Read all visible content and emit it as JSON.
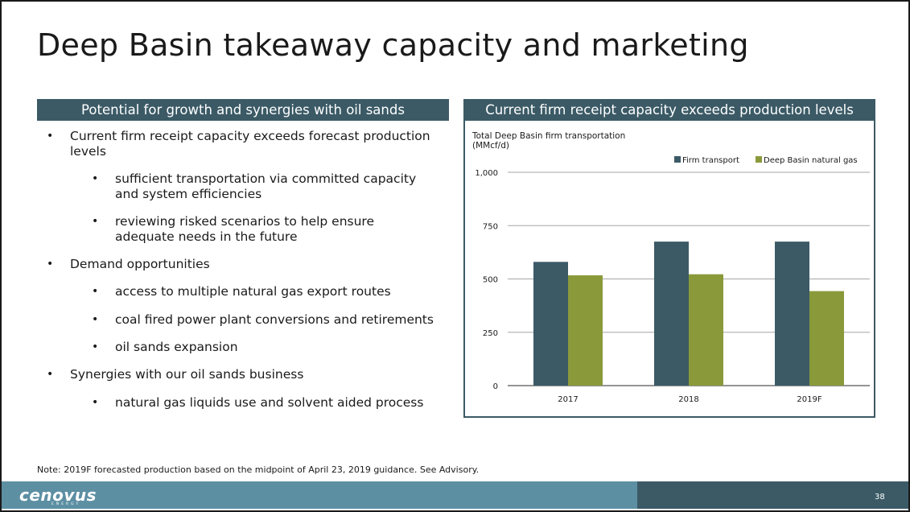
{
  "slide": {
    "title": "Deep Basin takeaway capacity and marketing",
    "left_header": "Potential for growth and synergies with oil sands",
    "right_header": "Current firm receipt capacity exceeds production levels",
    "bullets": [
      {
        "level": 1,
        "lines": [
          "Current firm receipt capacity exceeds forecast production",
          "levels"
        ]
      },
      {
        "level": 2,
        "lines": [
          "sufficient transportation via committed capacity",
          "and system efficiencies"
        ]
      },
      {
        "level": 2,
        "lines": [
          "reviewing risked scenarios to help ensure",
          "adequate needs in the future"
        ]
      },
      {
        "level": 1,
        "lines": [
          "Demand opportunities"
        ]
      },
      {
        "level": 2,
        "lines": [
          "access to multiple natural gas export routes"
        ]
      },
      {
        "level": 2,
        "lines": [
          "coal fired power plant conversions and retirements"
        ]
      },
      {
        "level": 2,
        "lines": [
          "oil sands expansion"
        ]
      },
      {
        "level": 1,
        "lines": [
          "Synergies with our oil sands business"
        ]
      },
      {
        "level": 2,
        "lines": [
          "natural gas liquids use and solvent aided process"
        ]
      }
    ],
    "bullet_glyph": "•",
    "note": "Note: 2019F forecasted production based on the midpoint of April 23, 2019 guidance. See Advisory.",
    "footer": {
      "logo": "cenovus",
      "logo_sub": "ENERGY",
      "page_number": "38"
    }
  },
  "colors": {
    "firm_transport": "#3b5a66",
    "deep_basin_gas": "#8a9a3a",
    "header_bg": "#3b5a66",
    "footer_bg": "#5d8fa3"
  },
  "chart_data": {
    "type": "bar",
    "title_lines": [
      "Total Deep Basin firm transportation",
      "(MMcf/d)"
    ],
    "categories": [
      "2017",
      "2018",
      "2019F"
    ],
    "series": [
      {
        "name": "Firm transport",
        "values": [
          580,
          675,
          675
        ],
        "color": "#3b5a66"
      },
      {
        "name": "Deep Basin natural gas",
        "values": [
          517,
          522,
          443
        ],
        "color": "#8a9a3a"
      }
    ],
    "ylim": [
      0,
      1000
    ],
    "yticks": [
      0,
      250,
      500,
      750,
      1000
    ],
    "ytick_labels": [
      "0",
      "250",
      "500",
      "750",
      "1,000"
    ],
    "grid": true,
    "legend_position": "top-right"
  }
}
